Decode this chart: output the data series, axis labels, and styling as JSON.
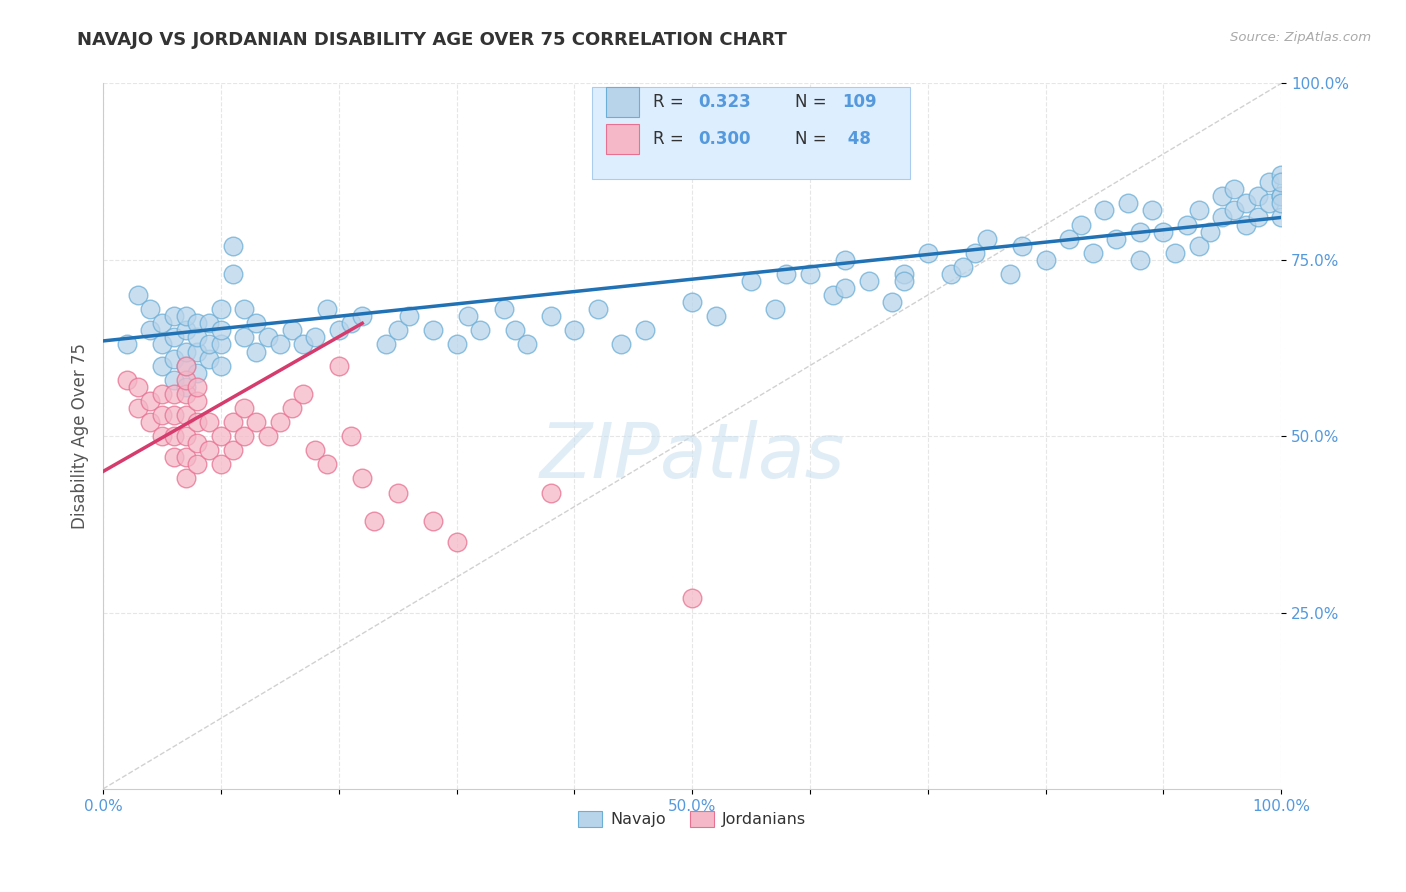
{
  "title": "NAVAJO VS JORDANIAN DISABILITY AGE OVER 75 CORRELATION CHART",
  "source": "Source: ZipAtlas.com",
  "ylabel": "Disability Age Over 75",
  "xlim": [
    0.0,
    1.0
  ],
  "ylim": [
    0.0,
    1.0
  ],
  "xtick_vals": [
    0.0,
    0.1,
    0.2,
    0.3,
    0.4,
    0.5,
    0.6,
    0.7,
    0.8,
    0.9,
    1.0
  ],
  "xtick_labels": [
    "0.0%",
    "",
    "",
    "",
    "",
    "50.0%",
    "",
    "",
    "",
    "",
    "100.0%"
  ],
  "ytick_vals": [
    0.25,
    0.5,
    0.75,
    1.0
  ],
  "ytick_labels": [
    "25.0%",
    "50.0%",
    "75.0%",
    "100.0%"
  ],
  "navajo_R": 0.323,
  "navajo_N": 109,
  "jordanian_R": 0.3,
  "jordanian_N": 48,
  "navajo_dot_face": "#b8d4ea",
  "navajo_dot_edge": "#6baed6",
  "jordanian_dot_face": "#f4b8c8",
  "jordanian_dot_edge": "#e87090",
  "navajo_line_color": "#2171b5",
  "jordanian_line_color": "#d63b6e",
  "diagonal_color": "#cccccc",
  "legend_box_face": "#ddeeff",
  "legend_box_edge": "#aaccee",
  "watermark_color": "#c8dff0",
  "background_color": "#ffffff",
  "grid_color": "#e0e0e0",
  "tick_label_color": "#5599dd",
  "title_color": "#333333",
  "source_color": "#aaaaaa",
  "axis_label_color": "#555555",
  "navajo_x": [
    0.02,
    0.03,
    0.04,
    0.04,
    0.05,
    0.05,
    0.05,
    0.06,
    0.06,
    0.06,
    0.06,
    0.07,
    0.07,
    0.07,
    0.07,
    0.07,
    0.08,
    0.08,
    0.08,
    0.08,
    0.09,
    0.09,
    0.09,
    0.1,
    0.1,
    0.1,
    0.1,
    0.11,
    0.11,
    0.12,
    0.12,
    0.13,
    0.13,
    0.14,
    0.15,
    0.16,
    0.17,
    0.18,
    0.19,
    0.2,
    0.21,
    0.22,
    0.24,
    0.25,
    0.26,
    0.28,
    0.3,
    0.31,
    0.32,
    0.34,
    0.35,
    0.36,
    0.38,
    0.4,
    0.42,
    0.44,
    0.46,
    0.5,
    0.52,
    0.55,
    0.57,
    0.6,
    0.62,
    0.63,
    0.65,
    0.67,
    0.68,
    0.7,
    0.72,
    0.74,
    0.75,
    0.77,
    0.78,
    0.8,
    0.82,
    0.83,
    0.84,
    0.85,
    0.86,
    0.87,
    0.88,
    0.88,
    0.89,
    0.9,
    0.91,
    0.92,
    0.93,
    0.93,
    0.94,
    0.95,
    0.95,
    0.96,
    0.96,
    0.97,
    0.97,
    0.98,
    0.98,
    0.99,
    0.99,
    1.0,
    1.0,
    1.0,
    1.0,
    1.0,
    1.0,
    0.58,
    0.63,
    0.68,
    0.73
  ],
  "navajo_y": [
    0.63,
    0.7,
    0.68,
    0.65,
    0.6,
    0.63,
    0.66,
    0.58,
    0.61,
    0.64,
    0.67,
    0.57,
    0.6,
    0.62,
    0.65,
    0.67,
    0.59,
    0.62,
    0.64,
    0.66,
    0.61,
    0.63,
    0.66,
    0.6,
    0.63,
    0.65,
    0.68,
    0.73,
    0.77,
    0.64,
    0.68,
    0.62,
    0.66,
    0.64,
    0.63,
    0.65,
    0.63,
    0.64,
    0.68,
    0.65,
    0.66,
    0.67,
    0.63,
    0.65,
    0.67,
    0.65,
    0.63,
    0.67,
    0.65,
    0.68,
    0.65,
    0.63,
    0.67,
    0.65,
    0.68,
    0.63,
    0.65,
    0.69,
    0.67,
    0.72,
    0.68,
    0.73,
    0.7,
    0.75,
    0.72,
    0.69,
    0.73,
    0.76,
    0.73,
    0.76,
    0.78,
    0.73,
    0.77,
    0.75,
    0.78,
    0.8,
    0.76,
    0.82,
    0.78,
    0.83,
    0.75,
    0.79,
    0.82,
    0.79,
    0.76,
    0.8,
    0.77,
    0.82,
    0.79,
    0.84,
    0.81,
    0.85,
    0.82,
    0.83,
    0.8,
    0.84,
    0.81,
    0.86,
    0.83,
    0.84,
    0.81,
    0.87,
    0.84,
    0.86,
    0.83,
    0.73,
    0.71,
    0.72,
    0.74
  ],
  "jordanian_x": [
    0.02,
    0.03,
    0.03,
    0.04,
    0.04,
    0.05,
    0.05,
    0.05,
    0.06,
    0.06,
    0.06,
    0.06,
    0.07,
    0.07,
    0.07,
    0.07,
    0.07,
    0.07,
    0.07,
    0.08,
    0.08,
    0.08,
    0.08,
    0.08,
    0.09,
    0.09,
    0.1,
    0.1,
    0.11,
    0.11,
    0.12,
    0.12,
    0.13,
    0.14,
    0.15,
    0.16,
    0.17,
    0.18,
    0.19,
    0.2,
    0.21,
    0.22,
    0.23,
    0.25,
    0.28,
    0.3,
    0.38,
    0.5
  ],
  "jordanian_y": [
    0.58,
    0.54,
    0.57,
    0.52,
    0.55,
    0.5,
    0.53,
    0.56,
    0.47,
    0.5,
    0.53,
    0.56,
    0.44,
    0.47,
    0.5,
    0.53,
    0.56,
    0.58,
    0.6,
    0.46,
    0.49,
    0.52,
    0.55,
    0.57,
    0.48,
    0.52,
    0.46,
    0.5,
    0.48,
    0.52,
    0.5,
    0.54,
    0.52,
    0.5,
    0.52,
    0.54,
    0.56,
    0.48,
    0.46,
    0.6,
    0.5,
    0.44,
    0.38,
    0.42,
    0.38,
    0.35,
    0.42,
    0.27
  ],
  "nav_line_x0": 0.0,
  "nav_line_y0": 0.635,
  "nav_line_x1": 1.0,
  "nav_line_y1": 0.81,
  "jor_line_x0": 0.0,
  "jor_line_y0": 0.45,
  "jor_line_x1": 0.22,
  "jor_line_y1": 0.66
}
